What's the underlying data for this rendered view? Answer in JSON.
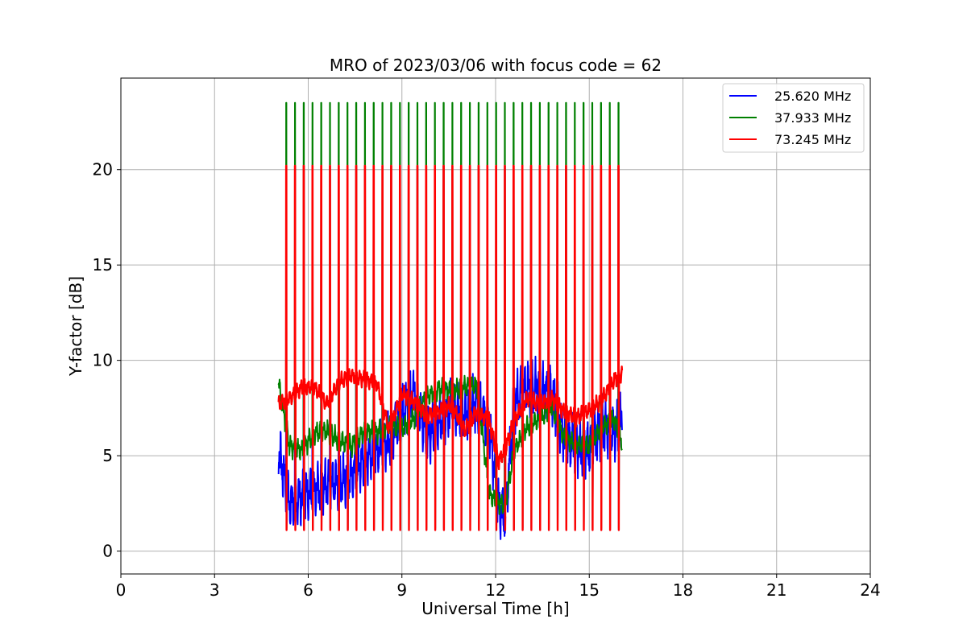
{
  "chart_data": {
    "type": "line",
    "title": "MRO of 2023/03/06 with focus code = 62",
    "xlabel": "Universal Time [h]",
    "ylabel": "Y-factor [dB]",
    "xlim": [
      0,
      24
    ],
    "ylim": [
      -1.2,
      24.8
    ],
    "xticks": [
      0,
      3,
      6,
      9,
      12,
      15,
      18,
      21,
      24
    ],
    "yticks": [
      0,
      5,
      10,
      15,
      20
    ],
    "grid": true,
    "legend_position": "top-right",
    "pulse_times_h": [
      5.3,
      5.58,
      5.86,
      6.14,
      6.42,
      6.7,
      6.98,
      7.26,
      7.54,
      7.82,
      8.1,
      8.38,
      8.66,
      8.94,
      9.22,
      9.5,
      9.78,
      10.06,
      10.34,
      10.62,
      10.9,
      11.18,
      11.46,
      11.74,
      12.02,
      12.3,
      12.58,
      12.86,
      13.14,
      13.42,
      13.7,
      13.98,
      14.26,
      14.54,
      14.82,
      15.1,
      15.38,
      15.66,
      15.94
    ],
    "series": [
      {
        "name": "25.620 MHz",
        "color": "#0000ff",
        "pulse_peak": 20.2,
        "pulse_floor": 1.1,
        "x": [
          5.05,
          5.4,
          5.8,
          6.2,
          6.6,
          7.0,
          7.4,
          7.8,
          8.2,
          8.6,
          9.0,
          9.4,
          9.8,
          10.2,
          10.6,
          11.0,
          11.4,
          11.8,
          12.1,
          12.3,
          12.6,
          13.0,
          13.4,
          13.8,
          14.2,
          14.6,
          15.0,
          15.4,
          15.8,
          16.05
        ],
        "y": [
          5.3,
          2.5,
          2.8,
          3.2,
          3.5,
          3.6,
          4.0,
          4.8,
          5.3,
          5.8,
          7.2,
          8.2,
          6.0,
          6.8,
          7.5,
          7.2,
          7.8,
          6.5,
          2.3,
          1.8,
          7.8,
          8.6,
          8.5,
          8.2,
          6.0,
          5.5,
          5.3,
          6.6,
          6.2,
          6.8
        ]
      },
      {
        "name": "37.933 MHz",
        "color": "#008000",
        "pulse_peak": 23.5,
        "pulse_floor": 1.2,
        "x": [
          5.05,
          5.4,
          5.8,
          6.2,
          6.6,
          7.0,
          7.4,
          7.8,
          8.2,
          8.6,
          9.0,
          9.4,
          9.8,
          10.2,
          10.6,
          11.0,
          11.4,
          11.8,
          12.1,
          12.3,
          12.6,
          13.0,
          13.4,
          13.8,
          14.2,
          14.6,
          15.0,
          15.4,
          15.8,
          16.05
        ],
        "y": [
          8.8,
          5.5,
          5.3,
          6.2,
          6.3,
          5.8,
          5.5,
          6.3,
          6.2,
          6.6,
          6.4,
          7.0,
          8.1,
          8.5,
          8.4,
          8.6,
          8.7,
          3.0,
          2.5,
          2.4,
          5.3,
          6.5,
          6.9,
          7.6,
          5.9,
          5.6,
          5.5,
          6.5,
          6.9,
          5.7
        ]
      },
      {
        "name": "73.245 MHz",
        "color": "#ff0000",
        "pulse_peak": 20.2,
        "pulse_floor": 1.1,
        "x": [
          5.05,
          5.4,
          5.8,
          6.2,
          6.6,
          7.0,
          7.4,
          7.8,
          8.2,
          8.6,
          9.0,
          9.4,
          9.8,
          10.2,
          10.6,
          11.0,
          11.4,
          11.8,
          12.1,
          12.3,
          12.6,
          13.0,
          13.4,
          13.8,
          14.2,
          14.6,
          15.0,
          15.4,
          15.8,
          16.05
        ],
        "y": [
          7.7,
          8.0,
          8.6,
          8.6,
          7.7,
          8.9,
          9.2,
          9.0,
          8.8,
          6.3,
          8.3,
          7.8,
          7.1,
          7.3,
          7.7,
          6.3,
          7.3,
          6.8,
          4.7,
          5.3,
          6.8,
          8.0,
          7.7,
          8.0,
          7.3,
          7.0,
          7.4,
          7.9,
          9.0,
          9.3
        ]
      }
    ]
  }
}
